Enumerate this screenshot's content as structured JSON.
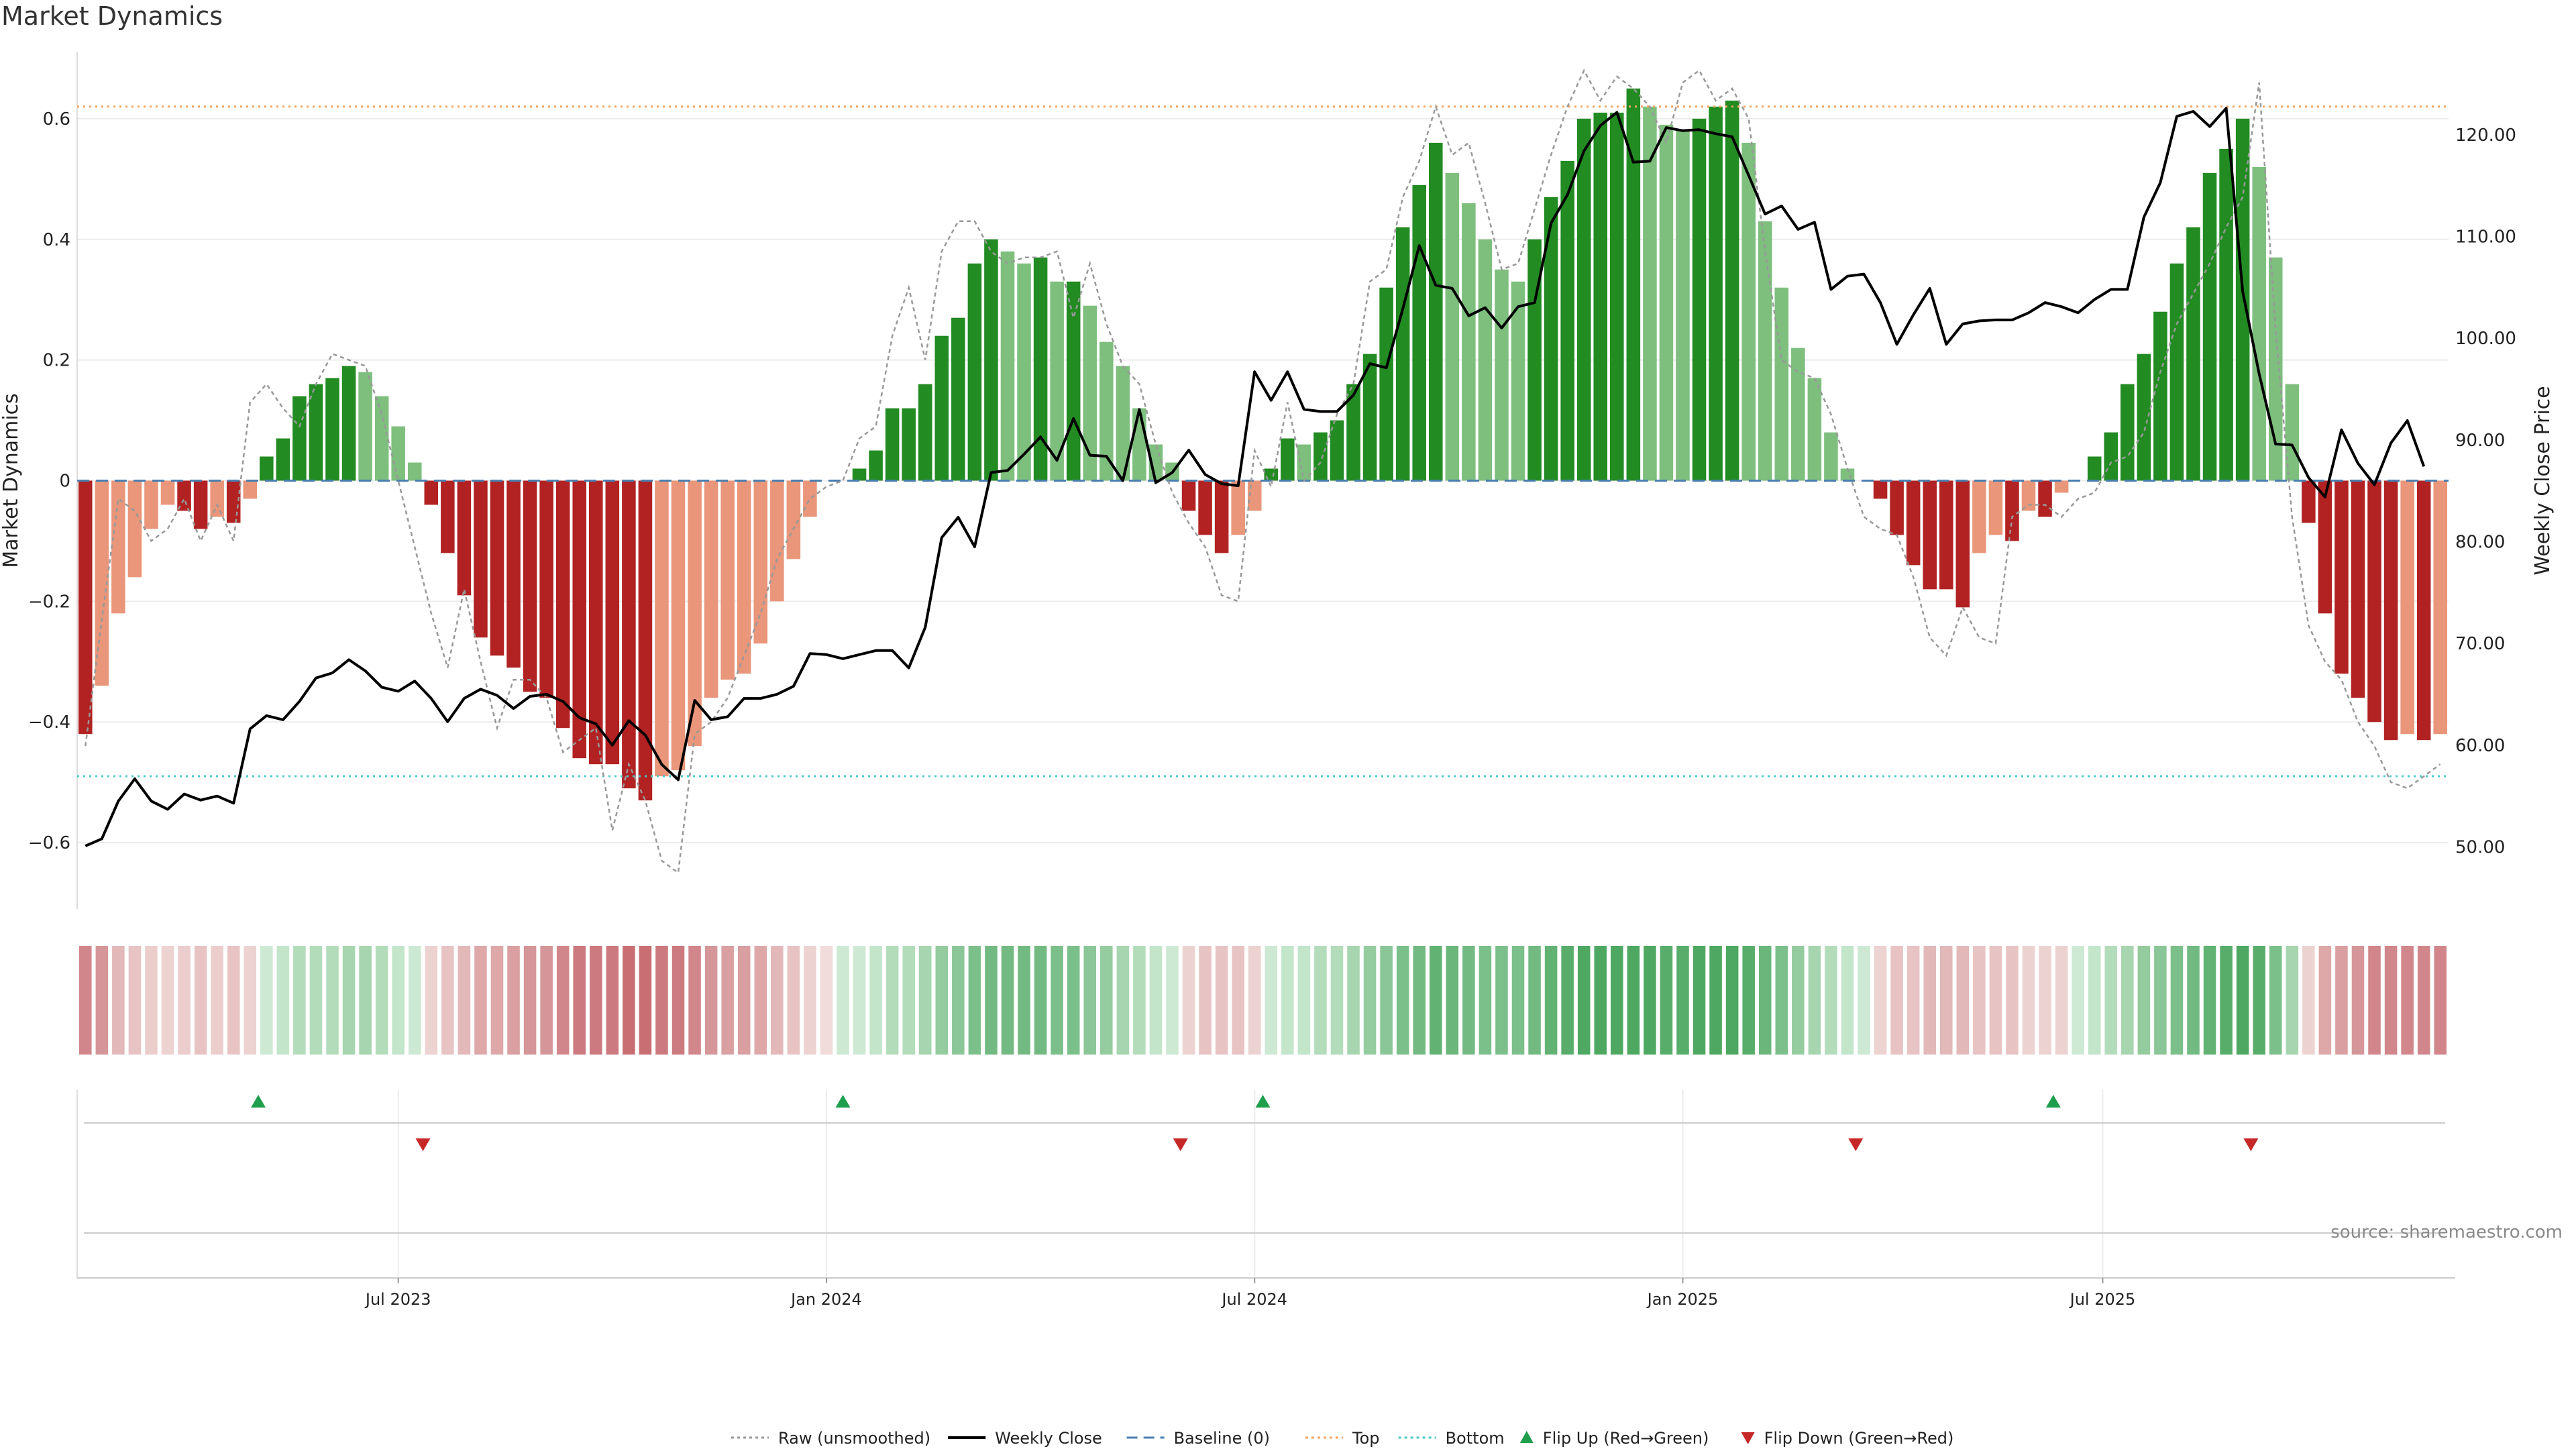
{
  "title": "Market Dynamics",
  "source": "source: sharemaestro.com",
  "chart_data": {
    "type": "bar",
    "title": "Market Dynamics",
    "ylabel": "Market Dynamics",
    "ylabel_right": "Weekly Close Price",
    "ylim": [
      -0.71,
      0.71
    ],
    "ylim_right": [
      43.9,
      128.1
    ],
    "y_ticks": [
      -0.6,
      -0.4,
      -0.2,
      0,
      0.2,
      0.4,
      0.6
    ],
    "y_tick_labels": [
      "−0.6",
      "−0.4",
      "−0.2",
      "0",
      "0.2",
      "0.4",
      "0.6"
    ],
    "y_right_ticks": [
      50,
      60,
      70,
      80,
      90,
      100,
      110,
      120
    ],
    "y_right_tick_labels": [
      "50.00",
      "60.00",
      "70.00",
      "80.00",
      "90.00",
      "100.00",
      "110.00",
      "120.00"
    ],
    "x_ticks": [
      {
        "label": "Jul 2023",
        "week": 19
      },
      {
        "label": "Jan 2024",
        "week": 45
      },
      {
        "label": "Jul 2024",
        "week": 71
      },
      {
        "label": "Jan 2025",
        "week": 97
      },
      {
        "label": "Jul 2025",
        "week": 122.5
      }
    ],
    "top_line": 0.62,
    "bottom_line": -0.49,
    "baseline": 0,
    "smoothed": [
      -0.42,
      -0.34,
      -0.22,
      -0.16,
      -0.08,
      -0.04,
      -0.05,
      -0.08,
      -0.06,
      -0.07,
      -0.03,
      0.04,
      0.07,
      0.14,
      0.16,
      0.17,
      0.19,
      0.18,
      0.14,
      0.09,
      0.03,
      -0.04,
      -0.12,
      -0.19,
      -0.26,
      -0.29,
      -0.31,
      -0.35,
      -0.36,
      -0.41,
      -0.46,
      -0.47,
      -0.47,
      -0.51,
      -0.53,
      -0.49,
      -0.48,
      -0.44,
      -0.36,
      -0.33,
      -0.32,
      -0.27,
      -0.2,
      -0.13,
      -0.06,
      0,
      0.0,
      0.02,
      0.05,
      0.12,
      0.12,
      0.16,
      0.24,
      0.27,
      0.36,
      0.4,
      0.38,
      0.36,
      0.37,
      0.33,
      0.33,
      0.29,
      0.23,
      0.19,
      0.12,
      0.06,
      0.03,
      -0.05,
      -0.09,
      -0.12,
      -0.09,
      -0.05,
      0.02,
      0.07,
      0.06,
      0.08,
      0.1,
      0.16,
      0.21,
      0.32,
      0.42,
      0.49,
      0.56,
      0.51,
      0.46,
      0.4,
      0.35,
      0.33,
      0.4,
      0.47,
      0.53,
      0.6,
      0.61,
      0.61,
      0.65,
      0.62,
      0.59,
      0.58,
      0.6,
      0.62,
      0.63,
      0.56,
      0.43,
      0.32,
      0.22,
      0.17,
      0.08,
      0.02,
      0,
      -0.03,
      -0.09,
      -0.14,
      -0.18,
      -0.18,
      -0.21,
      -0.12,
      -0.09,
      -0.1,
      -0.05,
      -0.06,
      -0.02,
      0,
      0.04,
      0.08,
      0.16,
      0.21,
      0.28,
      0.36,
      0.42,
      0.51,
      0.55,
      0.6,
      0.52,
      0.37,
      0.16,
      -0.07,
      -0.22,
      -0.32,
      -0.36,
      -0.4,
      -0.43,
      -0.42,
      -0.43,
      -0.42
    ],
    "raw": [
      -0.44,
      -0.23,
      -0.03,
      -0.05,
      -0.1,
      -0.08,
      -0.03,
      -0.1,
      -0.04,
      -0.1,
      0.13,
      0.16,
      0.12,
      0.09,
      0.16,
      0.21,
      0.2,
      0.19,
      0.11,
      0.0,
      -0.11,
      -0.22,
      -0.31,
      -0.18,
      -0.3,
      -0.41,
      -0.33,
      -0.33,
      -0.36,
      -0.45,
      -0.43,
      -0.41,
      -0.58,
      -0.47,
      -0.53,
      -0.63,
      -0.65,
      -0.42,
      -0.4,
      -0.36,
      -0.29,
      -0.22,
      -0.13,
      -0.08,
      -0.03,
      -0.01,
      0.0,
      0.07,
      0.09,
      0.24,
      0.32,
      0.2,
      0.38,
      0.43,
      0.43,
      0.38,
      0.36,
      0.37,
      0.37,
      0.38,
      0.27,
      0.36,
      0.26,
      0.19,
      0.16,
      0.06,
      -0.02,
      -0.07,
      -0.11,
      -0.19,
      -0.2,
      0.05,
      -0.01,
      0.13,
      0.0,
      0.03,
      0.11,
      0.16,
      0.33,
      0.35,
      0.47,
      0.53,
      0.62,
      0.54,
      0.56,
      0.46,
      0.35,
      0.36,
      0.45,
      0.54,
      0.62,
      0.68,
      0.63,
      0.67,
      0.65,
      0.62,
      0.56,
      0.66,
      0.68,
      0.63,
      0.65,
      0.6,
      0.38,
      0.2,
      0.18,
      0.17,
      0.11,
      0.02,
      -0.06,
      -0.08,
      -0.09,
      -0.16,
      -0.26,
      -0.29,
      -0.21,
      -0.26,
      -0.27,
      -0.06,
      -0.04,
      -0.04,
      -0.06,
      -0.03,
      -0.02,
      0.03,
      0.04,
      0.08,
      0.18,
      0.26,
      0.31,
      0.36,
      0.42,
      0.47,
      0.66,
      0.25,
      -0.06,
      -0.24,
      -0.3,
      -0.33,
      -0.4,
      -0.44,
      -0.5,
      -0.51,
      -0.49,
      -0.47
    ],
    "close": [
      50.1,
      50.8,
      54.5,
      56.7,
      54.5,
      53.7,
      55.2,
      54.6,
      55.0,
      54.3,
      61.6,
      62.9,
      62.5,
      64.3,
      66.6,
      67.1,
      68.4,
      67.3,
      65.7,
      65.3,
      66.3,
      64.6,
      62.3,
      64.6,
      65.5,
      64.9,
      63.6,
      64.8,
      65.0,
      64.3,
      62.7,
      62.1,
      60.0,
      62.4,
      61.0,
      58.1,
      56.6,
      64.4,
      62.5,
      62.8,
      64.6,
      64.6,
      65.0,
      65.8,
      69.0,
      68.9,
      68.5,
      68.9,
      69.3,
      69.3,
      67.6,
      71.6,
      80.4,
      82.4,
      79.5,
      86.8,
      87.0,
      88.6,
      90.3,
      88.0,
      92.1,
      88.5,
      88.4,
      86.0,
      93.0,
      85.8,
      86.8,
      89.0,
      86.6,
      85.7,
      85.5,
      96.7,
      93.9,
      96.7,
      93.0,
      92.8,
      92.8,
      94.4,
      97.5,
      97.1,
      102.9,
      109.1,
      105.2,
      104.9,
      102.2,
      103.0,
      101.0,
      103.1,
      103.5,
      111.3,
      114.1,
      118.4,
      120.9,
      122.2,
      117.3,
      117.4,
      120.7,
      120.4,
      120.5,
      120.1,
      119.8,
      116.0,
      112.2,
      113.0,
      110.7,
      111.4,
      104.8,
      106.1,
      106.3,
      103.5,
      99.4,
      102.3,
      104.9,
      99.4,
      101.4,
      101.7,
      101.8,
      101.8,
      102.5,
      103.5,
      103.1,
      102.5,
      103.8,
      104.8,
      104.8,
      111.9,
      115.3,
      121.8,
      122.3,
      120.8,
      122.6,
      104.6,
      96.5,
      89.6,
      89.5,
      86.3,
      84.4,
      91.0,
      87.7,
      85.6,
      89.7,
      91.9,
      87.4
    ],
    "heat_colors": [
      "#d1868b",
      "#d59699",
      "#e2b8b9",
      "#e8c3c3",
      "#ebcecc",
      "#ecd2d0",
      "#eacdcc",
      "#e8c3c3",
      "#ebcecc",
      "#e8c5c4",
      "#ecd2d0",
      "#cde9d3",
      "#c3e5ca",
      "#b3dcbb",
      "#b3dcbb",
      "#b3dcbb",
      "#a6d5b0",
      "#a6d5b0",
      "#b3dcbb",
      "#c3e5ca",
      "#cde9d3",
      "#ecd2d0",
      "#e8c3c3",
      "#e2b8b9",
      "#dea8a9",
      "#dea8a9",
      "#d99fa1",
      "#d59699",
      "#d59699",
      "#d1868b",
      "#cc7a7f",
      "#cc7a7f",
      "#cc7a7f",
      "#c96e73",
      "#c96e73",
      "#cc7a7f",
      "#cc7a7f",
      "#d1868b",
      "#d59699",
      "#d99fa1",
      "#d99fa1",
      "#dea8a9",
      "#e2b8b9",
      "#e8c3c3",
      "#ecd2d0",
      "#f1dcdb",
      "#cde9d3",
      "#cde9d3",
      "#c3e5ca",
      "#b3dcbb",
      "#b3dcbb",
      "#a6d5b0",
      "#94cb9f",
      "#8ac697",
      "#7bbf8a",
      "#72ba82",
      "#72ba82",
      "#72ba82",
      "#72ba82",
      "#7bbf8a",
      "#7bbf8a",
      "#8ac697",
      "#94cb9f",
      "#a6d5b0",
      "#b3dcbb",
      "#c3e5ca",
      "#cde9d3",
      "#ecd2d0",
      "#e8c3c3",
      "#e8c3c3",
      "#e8c3c3",
      "#ecd2d0",
      "#cde9d3",
      "#c3e5ca",
      "#c3e5ca",
      "#b3dcbb",
      "#b3dcbb",
      "#a6d5b0",
      "#94cb9f",
      "#8ac697",
      "#7bbf8a",
      "#72ba82",
      "#62b273",
      "#6ab67b",
      "#72ba82",
      "#7bbf8a",
      "#7bbf8a",
      "#7bbf8a",
      "#72ba82",
      "#62b273",
      "#58ad6a",
      "#4fa862",
      "#4fa862",
      "#4fa862",
      "#4fa862",
      "#4fa862",
      "#58ad6a",
      "#58ad6a",
      "#4fa862",
      "#4fa862",
      "#4fa862",
      "#58ad6a",
      "#6ab67b",
      "#7bbf8a",
      "#94cb9f",
      "#a6d5b0",
      "#b3dcbb",
      "#c3e5ca",
      "#cde9d3",
      "#ecd2d0",
      "#e8c3c3",
      "#e8c3c3",
      "#e2b8b9",
      "#e2b8b9",
      "#e2b8b9",
      "#e8c3c3",
      "#e8c3c3",
      "#e8c3c3",
      "#ecd2d0",
      "#ecd2d0",
      "#ecd2d0",
      "#cde9d3",
      "#c3e5ca",
      "#b3dcbb",
      "#a6d5b0",
      "#94cb9f",
      "#8ac697",
      "#7bbf8a",
      "#72ba82",
      "#62b273",
      "#58ad6a",
      "#4fa862",
      "#58ad6a",
      "#7bbf8a",
      "#a6d5b0",
      "#ecd2d0",
      "#dea8a9",
      "#d99fa1",
      "#d59699",
      "#d1868b",
      "#d1868b",
      "#d1868b",
      "#d1868b",
      "#d1868b"
    ],
    "flip_up": [
      10.5,
      46,
      71.5,
      119.5
    ],
    "flip_down": [
      20.5,
      66.5,
      107.5,
      131.5
    ],
    "colors": {
      "pos_rising": "#228b22",
      "pos_falling": "#7ebf7e",
      "neg_falling": "#b22222",
      "neg_rising": "#e9967a",
      "close": "#000000",
      "raw": "#999999",
      "baseline": "#4a7fb0",
      "top": "#f4a460",
      "bottom": "#48c9c9",
      "flip_up": "#1f9e4b",
      "flip_down": "#c62828"
    },
    "legend_position": "bottom-center",
    "legend": [
      {
        "label": "Raw (unsmoothed)",
        "kind": "dotted",
        "color": "#999999"
      },
      {
        "label": "Weekly Close",
        "kind": "solid",
        "color": "#000000"
      },
      {
        "label": "Baseline (0)",
        "kind": "dashed",
        "color": "#4a7fb0"
      },
      {
        "label": "Top",
        "kind": "dotted",
        "color": "#f4a460"
      },
      {
        "label": "Bottom",
        "kind": "dotted",
        "color": "#48c9c9"
      },
      {
        "label": "Flip Up (Red→Green)",
        "kind": "up",
        "color": "#1f9e4b"
      },
      {
        "label": "Flip Down (Green→Red)",
        "kind": "down",
        "color": "#c62828"
      }
    ]
  }
}
